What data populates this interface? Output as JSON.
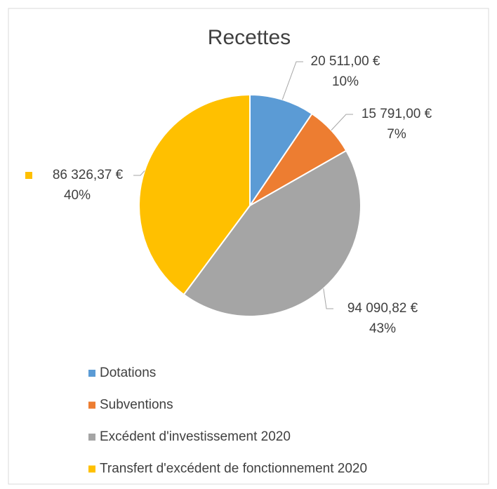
{
  "chart_data": {
    "type": "pie",
    "title": "Recettes",
    "categories": [
      "Dotations",
      "Subventions",
      "Excédent d'investissement 2020",
      "Transfert d'excédent de fonctionnement 2020"
    ],
    "values": [
      20511,
      15791,
      94090.82,
      86326.37
    ],
    "value_labels": [
      "20 511,00 €",
      "15 791,00 €",
      "94 090,82 €",
      "86 326,37 €"
    ],
    "percent_labels": [
      "10%",
      "7%",
      "43%",
      "40%"
    ],
    "colors": [
      "#5b9bd5",
      "#ed7d31",
      "#a5a5a5",
      "#ffc000"
    ],
    "legend": "bottom"
  }
}
